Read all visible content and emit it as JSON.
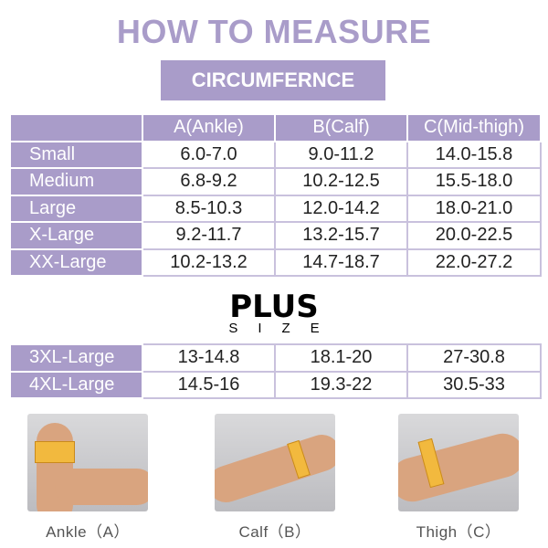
{
  "title": "HOW TO MEASURE",
  "subtitle": "CIRCUMFERNCE",
  "table": {
    "headers": [
      "",
      "A(Ankle)",
      "B(Calf)",
      "C(Mid-thigh)"
    ],
    "rows": [
      [
        "Small",
        "6.0-7.0",
        "9.0-11.2",
        "14.0-15.8"
      ],
      [
        "Medium",
        "6.8-9.2",
        "10.2-12.5",
        "15.5-18.0"
      ],
      [
        "Large",
        "8.5-10.3",
        "12.0-14.2",
        "18.0-21.0"
      ],
      [
        "X-Large",
        "9.2-11.7",
        "13.2-15.7",
        "20.0-22.5"
      ],
      [
        "XX-Large",
        "10.2-13.2",
        "14.7-18.7",
        "22.0-27.2"
      ]
    ]
  },
  "plus": {
    "title": "PLUS",
    "subtitle": "SIZE"
  },
  "plus_table": {
    "rows": [
      [
        "3XL-Large",
        "13-14.8",
        "18.1-20",
        "27-30.8"
      ],
      [
        "4XL-Large",
        "14.5-16",
        "19.3-22",
        "30.5-33"
      ]
    ]
  },
  "photos": [
    {
      "caption": "Ankle（A）"
    },
    {
      "caption": "Calf（B）"
    },
    {
      "caption": "Thigh（C）"
    }
  ],
  "colors": {
    "accent": "#a99cc9"
  }
}
